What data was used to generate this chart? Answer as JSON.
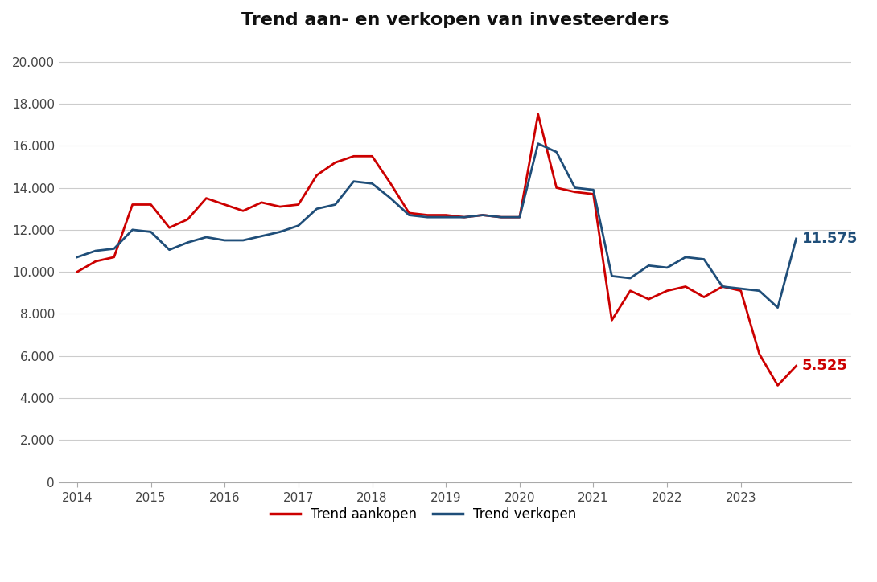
{
  "title": "Trend aan- en verkopen van investeerders",
  "color_aankopen": "#cc0000",
  "color_verkopen": "#1f4e79",
  "label_aankopen": "Trend aankopen",
  "label_verkopen": "Trend verkopen",
  "end_label_aankopen": "5.525",
  "end_label_verkopen": "11.575",
  "x_ticks": [
    2014,
    2015,
    2016,
    2017,
    2018,
    2019,
    2020,
    2021,
    2022,
    2023
  ],
  "y_ticks": [
    0,
    2000,
    4000,
    6000,
    8000,
    10000,
    12000,
    14000,
    16000,
    18000,
    20000
  ],
  "ylim": [
    0,
    21000
  ],
  "xlim_left": 2013.75,
  "xlim_right": 2024.5,
  "background": "#ffffff",
  "aankopen_x": [
    2014.0,
    2014.25,
    2014.5,
    2014.75,
    2015.0,
    2015.25,
    2015.5,
    2015.75,
    2016.0,
    2016.25,
    2016.5,
    2016.75,
    2017.0,
    2017.25,
    2017.5,
    2017.75,
    2018.0,
    2018.25,
    2018.5,
    2018.75,
    2019.0,
    2019.25,
    2019.5,
    2019.75,
    2020.0,
    2020.25,
    2020.5,
    2020.75,
    2021.0,
    2021.25,
    2021.5,
    2021.75,
    2022.0,
    2022.25,
    2022.5,
    2022.75,
    2023.0,
    2023.25,
    2023.5,
    2023.75
  ],
  "aankopen_y": [
    10000,
    10500,
    10700,
    13200,
    13200,
    12100,
    12500,
    13500,
    13200,
    12900,
    13300,
    13100,
    13200,
    14600,
    15200,
    15500,
    15500,
    14200,
    12800,
    12700,
    12700,
    12600,
    12700,
    12600,
    12600,
    17500,
    14000,
    13800,
    13700,
    7700,
    9100,
    8700,
    9100,
    9300,
    8800,
    9300,
    9100,
    6100,
    4600,
    5525
  ],
  "verkopen_x": [
    2014.0,
    2014.25,
    2014.5,
    2014.75,
    2015.0,
    2015.25,
    2015.5,
    2015.75,
    2016.0,
    2016.25,
    2016.5,
    2016.75,
    2017.0,
    2017.25,
    2017.5,
    2017.75,
    2018.0,
    2018.25,
    2018.5,
    2018.75,
    2019.0,
    2019.25,
    2019.5,
    2019.75,
    2020.0,
    2020.25,
    2020.5,
    2020.75,
    2021.0,
    2021.25,
    2021.5,
    2021.75,
    2022.0,
    2022.25,
    2022.5,
    2022.75,
    2023.0,
    2023.25,
    2023.5,
    2023.75
  ],
  "verkopen_y": [
    10700,
    11000,
    11100,
    12000,
    11900,
    11050,
    11400,
    11650,
    11500,
    11500,
    11700,
    11900,
    12200,
    13000,
    13200,
    14300,
    14200,
    13500,
    12700,
    12600,
    12600,
    12600,
    12700,
    12600,
    12600,
    16100,
    15700,
    14000,
    13900,
    9800,
    9700,
    10300,
    10200,
    10700,
    10600,
    9300,
    9200,
    9100,
    8300,
    11575
  ]
}
